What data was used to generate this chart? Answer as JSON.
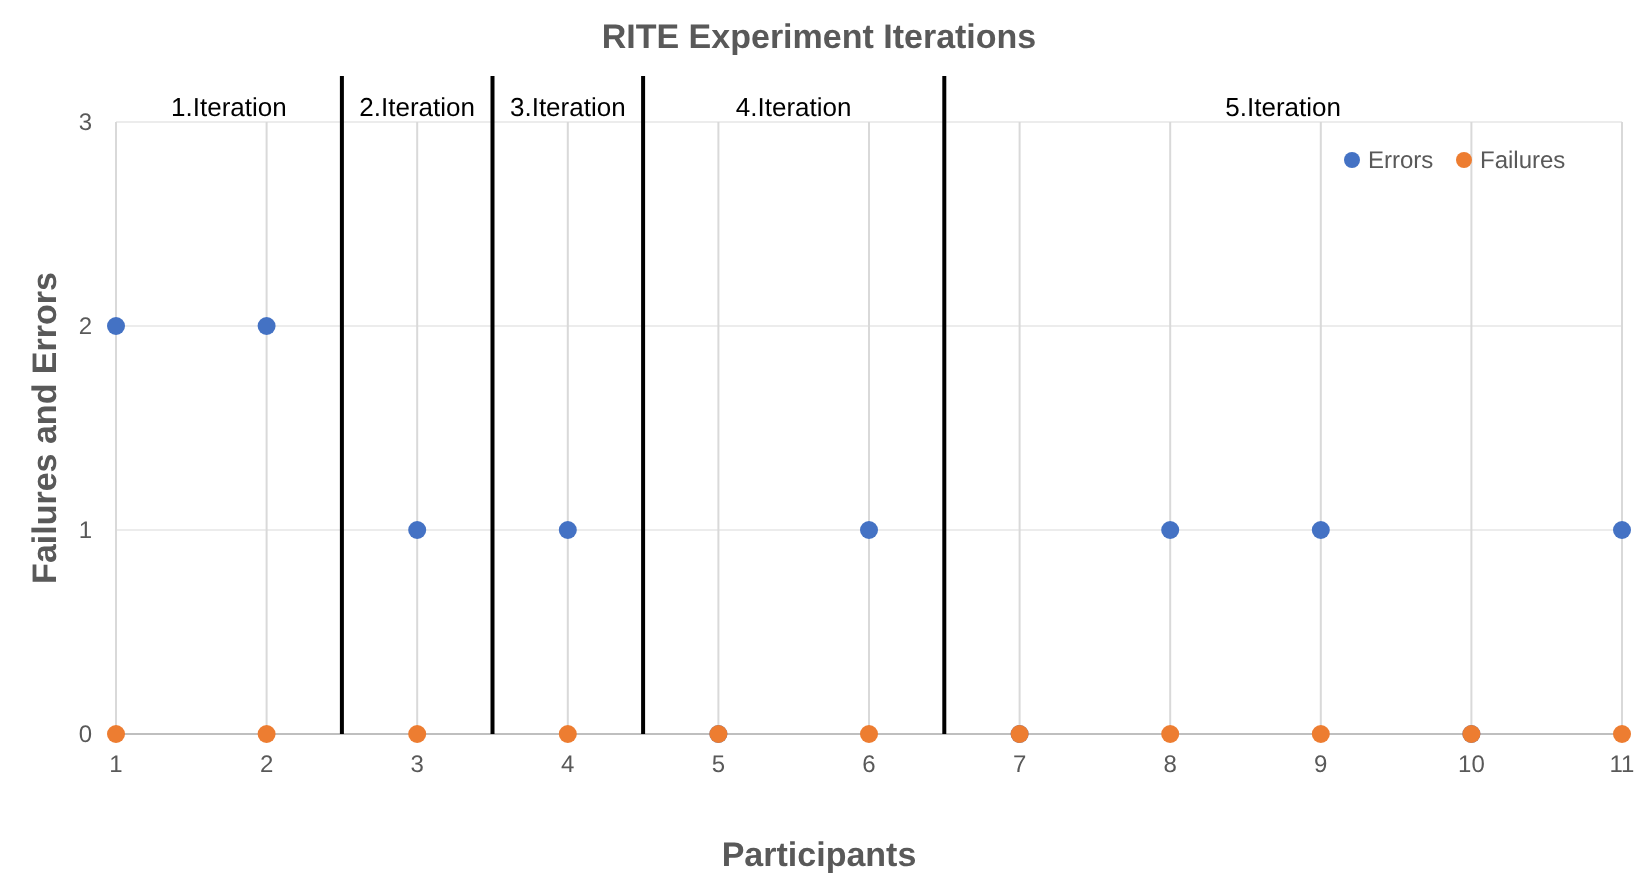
{
  "chart_data": {
    "type": "scatter",
    "title": "RITE Experiment Iterations",
    "xlabel": "Participants",
    "ylabel": "Failures and Errors",
    "x": [
      1,
      2,
      3,
      4,
      5,
      6,
      7,
      8,
      9,
      10,
      11
    ],
    "series": [
      {
        "name": "Errors",
        "color": "#4472c4",
        "values": [
          2,
          2,
          1,
          1,
          0,
          1,
          0,
          1,
          1,
          0,
          1
        ]
      },
      {
        "name": "Failures",
        "color": "#ed7d31",
        "values": [
          0,
          0,
          0,
          0,
          0,
          0,
          0,
          0,
          0,
          0,
          0
        ]
      }
    ],
    "xlim": [
      1,
      11
    ],
    "xticks": [
      1,
      2,
      3,
      4,
      5,
      6,
      7,
      8,
      9,
      10,
      11
    ],
    "ylim": [
      0,
      3
    ],
    "yticks": [
      0,
      1,
      2,
      3
    ],
    "ref_lines": [
      {
        "axis": "x",
        "value": 2.5,
        "color": "#000000"
      },
      {
        "axis": "x",
        "value": 3.5,
        "color": "#000000"
      },
      {
        "axis": "x",
        "value": 4.5,
        "color": "#000000"
      },
      {
        "axis": "x",
        "value": 6.5,
        "color": "#000000"
      }
    ],
    "annotations": [
      "1.Iteration",
      "2.Iteration",
      "3.Iteration",
      "4.Iteration",
      "5.Iteration"
    ],
    "grid": true,
    "legend": "top right",
    "marker": "circle"
  }
}
